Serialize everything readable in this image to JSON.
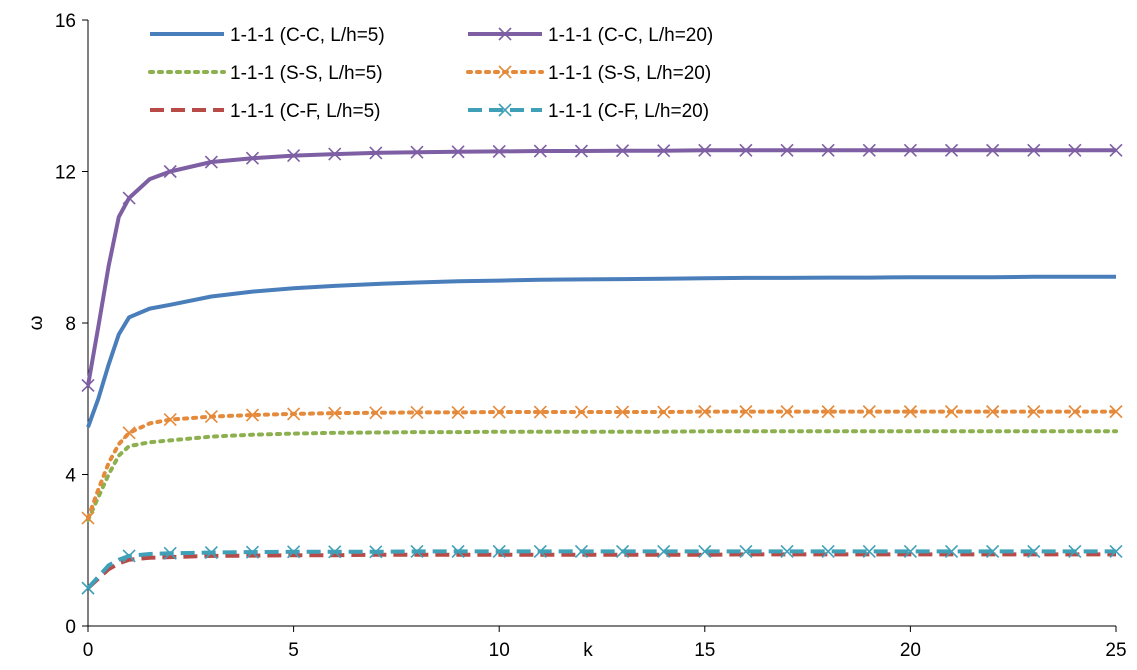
{
  "chart_data": {
    "type": "line",
    "title": "",
    "xlabel": "k",
    "ylabel": "ω",
    "xlim": [
      0,
      25
    ],
    "ylim": [
      0,
      16
    ],
    "xticks": [
      0,
      5,
      10,
      15,
      20,
      25
    ],
    "yticks": [
      0,
      4,
      8,
      12,
      16
    ],
    "grid": false,
    "legend_position": "top",
    "x": [
      0,
      0.25,
      0.5,
      0.75,
      1,
      1.5,
      2,
      3,
      4,
      5,
      6,
      7,
      8,
      9,
      10,
      11,
      12,
      13,
      14,
      15,
      16,
      17,
      18,
      19,
      20,
      21,
      22,
      23,
      24,
      25
    ],
    "series": [
      {
        "name": "1-1-1 (C-C, L/h=5)",
        "color": "#4a7ebb",
        "style": "solid",
        "marker": "none",
        "values": [
          5.25,
          6.0,
          6.9,
          7.7,
          8.15,
          8.38,
          8.48,
          8.7,
          8.83,
          8.92,
          8.98,
          9.03,
          9.07,
          9.1,
          9.12,
          9.14,
          9.15,
          9.16,
          9.17,
          9.18,
          9.19,
          9.19,
          9.2,
          9.2,
          9.21,
          9.21,
          9.21,
          9.22,
          9.22,
          9.22
        ]
      },
      {
        "name": "1-1-1 (C-C, L/h=20)",
        "color": "#7e5fa3",
        "style": "solid",
        "marker": "x",
        "values": [
          6.35,
          7.9,
          9.5,
          10.8,
          11.3,
          11.8,
          12.0,
          12.25,
          12.35,
          12.42,
          12.46,
          12.49,
          12.51,
          12.52,
          12.53,
          12.54,
          12.54,
          12.55,
          12.55,
          12.56,
          12.56,
          12.56,
          12.56,
          12.56,
          12.56,
          12.56,
          12.56,
          12.56,
          12.56,
          12.56
        ]
      },
      {
        "name": "1-1-1 (S-S, L/h=5)",
        "color": "#8db04f",
        "style": "dotted",
        "marker": "none",
        "values": [
          2.8,
          3.4,
          4.0,
          4.5,
          4.75,
          4.85,
          4.9,
          5.0,
          5.05,
          5.08,
          5.1,
          5.11,
          5.12,
          5.12,
          5.13,
          5.13,
          5.13,
          5.13,
          5.13,
          5.14,
          5.14,
          5.14,
          5.14,
          5.14,
          5.14,
          5.14,
          5.14,
          5.14,
          5.14,
          5.14
        ]
      },
      {
        "name": "1-1-1 (S-S, L/h=20)",
        "color": "#e5893a",
        "style": "dotted",
        "marker": "x",
        "values": [
          2.85,
          3.6,
          4.3,
          4.8,
          5.1,
          5.35,
          5.45,
          5.53,
          5.57,
          5.6,
          5.62,
          5.63,
          5.64,
          5.64,
          5.65,
          5.65,
          5.65,
          5.65,
          5.65,
          5.66,
          5.66,
          5.66,
          5.66,
          5.66,
          5.66,
          5.66,
          5.66,
          5.66,
          5.66,
          5.66
        ]
      },
      {
        "name": "1-1-1 (C-F, L/h=5)",
        "color": "#b84a47",
        "style": "dashed",
        "marker": "none",
        "values": [
          1.0,
          1.25,
          1.5,
          1.65,
          1.75,
          1.8,
          1.82,
          1.85,
          1.86,
          1.87,
          1.87,
          1.88,
          1.88,
          1.88,
          1.88,
          1.88,
          1.88,
          1.88,
          1.88,
          1.88,
          1.89,
          1.89,
          1.89,
          1.89,
          1.89,
          1.89,
          1.89,
          1.89,
          1.89,
          1.89
        ]
      },
      {
        "name": "1-1-1 (C-F, L/h=20)",
        "color": "#3fa0b8",
        "style": "dashed",
        "marker": "x",
        "values": [
          1.0,
          1.3,
          1.6,
          1.75,
          1.85,
          1.9,
          1.92,
          1.94,
          1.95,
          1.96,
          1.96,
          1.96,
          1.97,
          1.97,
          1.97,
          1.97,
          1.97,
          1.97,
          1.97,
          1.97,
          1.97,
          1.97,
          1.97,
          1.97,
          1.97,
          1.97,
          1.97,
          1.97,
          1.97,
          1.97
        ]
      }
    ]
  }
}
